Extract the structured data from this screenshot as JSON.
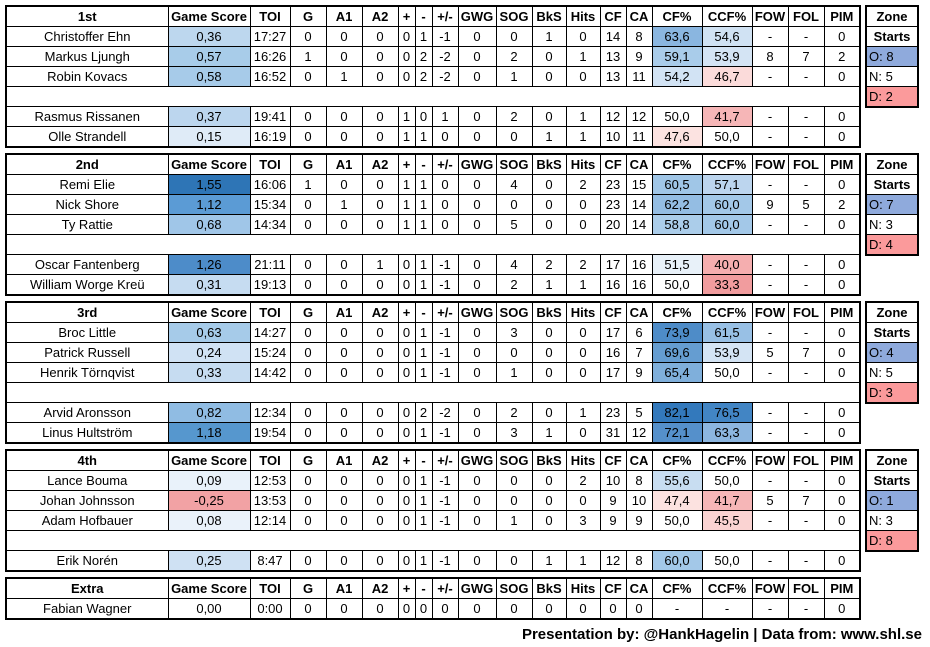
{
  "chart_data": {
    "type": "table",
    "title": "Line-by-line hockey player statistics",
    "columns": [
      "Game Score",
      "TOI",
      "G",
      "A1",
      "A2",
      "+",
      "-",
      "+/-",
      "GWG",
      "SOG",
      "BkS",
      "Hits",
      "CF",
      "CA",
      "CF%",
      "CCF%",
      "FOW",
      "FOL",
      "PIM"
    ],
    "zone_header": [
      "Zone",
      "Starts"
    ],
    "colors": {
      "zone_offensive_bg": "#8FAADC",
      "zone_defensive_bg": "#FB9A9B",
      "scale_blue_max": "#2E75B6",
      "scale_red_min": "#F2A2A4"
    },
    "sections": [
      {
        "label": "1st",
        "rows": [
          {
            "name": "Christoffer Ehn",
            "values": [
              "0,36",
              "17:27",
              "0",
              "0",
              "0",
              "0",
              "1",
              "-1",
              "0",
              "0",
              "1",
              "0",
              "14",
              "8",
              "63,6",
              "54,6",
              "-",
              "-",
              "0"
            ],
            "bg": {
              "0": "#BDD7EE",
              "14": "#8AB6E0",
              "15": "#D0E2F3"
            }
          },
          {
            "name": "Markus Ljungh",
            "values": [
              "0,57",
              "16:26",
              "1",
              "0",
              "0",
              "0",
              "2",
              "-2",
              "0",
              "2",
              "0",
              "1",
              "13",
              "9",
              "59,1",
              "53,9",
              "8",
              "7",
              "2"
            ],
            "bg": {
              "0": "#A8CCE9",
              "14": "#A9CCEA",
              "15": "#D4E4F4"
            }
          },
          {
            "name": "Robin Kovacs",
            "values": [
              "0,58",
              "16:52",
              "0",
              "1",
              "0",
              "0",
              "2",
              "-2",
              "0",
              "1",
              "0",
              "0",
              "13",
              "11",
              "54,2",
              "46,7",
              "-",
              "-",
              "0"
            ],
            "bg": {
              "0": "#A7CBE9",
              "14": "#D2E3F4",
              "15": "#FBDBDA"
            }
          },
          null,
          {
            "name": "Rasmus Rissanen",
            "values": [
              "0,37",
              "19:41",
              "0",
              "0",
              "0",
              "1",
              "0",
              "1",
              "0",
              "2",
              "0",
              "1",
              "12",
              "12",
              "50,0",
              "41,7",
              "-",
              "-",
              "0"
            ],
            "bg": {
              "0": "#BCD6EE",
              "15": "#F6B6B7"
            }
          },
          {
            "name": "Olle Strandell",
            "values": [
              "0,15",
              "16:19",
              "0",
              "0",
              "0",
              "1",
              "1",
              "0",
              "0",
              "0",
              "1",
              "1",
              "10",
              "11",
              "47,6",
              "50,0",
              "-",
              "-",
              "0"
            ],
            "bg": {
              "0": "#DFEBF7",
              "14": "#FCE3E1"
            }
          }
        ],
        "zone": {
          "o": "O: 8",
          "n": "N: 5",
          "d": "D: 2"
        }
      },
      {
        "label": "2nd",
        "rows": [
          {
            "name": "Remi Elie",
            "values": [
              "1,55",
              "16:06",
              "1",
              "0",
              "0",
              "1",
              "1",
              "0",
              "0",
              "4",
              "0",
              "2",
              "23",
              "15",
              "60,5",
              "57,1",
              "-",
              "-",
              "0"
            ],
            "bg": {
              "0": "#2E75B6",
              "14": "#A0C6E7",
              "15": "#BCD5EE"
            }
          },
          {
            "name": "Nick Shore",
            "values": [
              "1,12",
              "15:34",
              "0",
              "1",
              "0",
              "1",
              "1",
              "0",
              "0",
              "0",
              "0",
              "0",
              "23",
              "14",
              "62,2",
              "60,0",
              "9",
              "5",
              "2"
            ],
            "bg": {
              "0": "#5B9BD5",
              "14": "#94BDE3",
              "15": "#A3C8E8"
            }
          },
          {
            "name": "Ty Rattie",
            "values": [
              "0,68",
              "14:34",
              "0",
              "0",
              "0",
              "1",
              "1",
              "0",
              "0",
              "5",
              "0",
              "0",
              "20",
              "14",
              "58,8",
              "60,0",
              "-",
              "-",
              "0"
            ],
            "bg": {
              "0": "#A0C6E8",
              "14": "#ABCDEA",
              "15": "#A3C8E8"
            }
          },
          null,
          {
            "name": "Oscar Fantenberg",
            "values": [
              "1,26",
              "21:11",
              "0",
              "0",
              "1",
              "0",
              "1",
              "-1",
              "0",
              "4",
              "2",
              "2",
              "17",
              "16",
              "51,5",
              "40,0",
              "-",
              "-",
              "0"
            ],
            "bg": {
              "0": "#4D8CC9",
              "14": "#E8F1F9",
              "15": "#F5AEAF"
            }
          },
          {
            "name": "William Worge Kreü",
            "values": [
              "0,31",
              "19:13",
              "0",
              "0",
              "0",
              "0",
              "1",
              "-1",
              "0",
              "2",
              "1",
              "1",
              "16",
              "16",
              "50,0",
              "33,3",
              "-",
              "-",
              "0"
            ],
            "bg": {
              "0": "#C6DCF1",
              "15": "#F19C9E"
            }
          }
        ],
        "zone": {
          "o": "O: 7",
          "n": "N: 3",
          "d": "D: 4"
        }
      },
      {
        "label": "3rd",
        "rows": [
          {
            "name": "Broc Little",
            "values": [
              "0,63",
              "14:27",
              "0",
              "0",
              "0",
              "0",
              "1",
              "-1",
              "0",
              "3",
              "0",
              "0",
              "17",
              "6",
              "73,9",
              "61,5",
              "-",
              "-",
              "0"
            ],
            "bg": {
              "0": "#A6CBE9",
              "14": "#4E8CC8",
              "15": "#98C0E5"
            }
          },
          {
            "name": "Patrick Russell",
            "values": [
              "0,24",
              "15:24",
              "0",
              "0",
              "0",
              "0",
              "1",
              "-1",
              "0",
              "0",
              "0",
              "0",
              "16",
              "7",
              "69,6",
              "53,9",
              "5",
              "7",
              "0"
            ],
            "bg": {
              "0": "#D0E2F4",
              "14": "#659DD1",
              "15": "#D4E4F4"
            }
          },
          {
            "name": "Henrik Törnqvist",
            "values": [
              "0,33",
              "14:42",
              "0",
              "0",
              "0",
              "0",
              "1",
              "-1",
              "0",
              "1",
              "0",
              "0",
              "17",
              "9",
              "65,4",
              "50,0",
              "-",
              "-",
              "0"
            ],
            "bg": {
              "0": "#C6DCF1",
              "14": "#7FAFDB"
            }
          },
          null,
          {
            "name": "Arvid Aronsson",
            "values": [
              "0,82",
              "12:34",
              "0",
              "0",
              "0",
              "0",
              "2",
              "-2",
              "0",
              "2",
              "0",
              "1",
              "23",
              "5",
              "82,1",
              "76,5",
              "-",
              "-",
              "0"
            ],
            "bg": {
              "0": "#90BCE3",
              "14": "#3379BC",
              "15": "#4285C4"
            }
          },
          {
            "name": "Linus Hultström",
            "values": [
              "1,18",
              "19:54",
              "0",
              "0",
              "0",
              "0",
              "1",
              "-1",
              "0",
              "3",
              "1",
              "0",
              "31",
              "12",
              "72,1",
              "63,3",
              "-",
              "-",
              "0"
            ],
            "bg": {
              "0": "#5697CE",
              "14": "#5590CB",
              "15": "#8CB6E0"
            }
          }
        ],
        "zone": {
          "o": "O: 4",
          "n": "N: 5",
          "d": "D: 3"
        }
      },
      {
        "label": "4th",
        "rows": [
          {
            "name": "Lance Bouma",
            "values": [
              "0,09",
              "12:53",
              "0",
              "0",
              "0",
              "0",
              "1",
              "-1",
              "0",
              "0",
              "0",
              "2",
              "10",
              "8",
              "55,6",
              "50,0",
              "-",
              "-",
              "0"
            ],
            "bg": {
              "0": "#E9F2FA",
              "14": "#C8DDF1"
            }
          },
          {
            "name": "Johan Johnsson",
            "values": [
              "-0,25",
              "13:53",
              "0",
              "0",
              "0",
              "0",
              "1",
              "-1",
              "0",
              "0",
              "0",
              "0",
              "9",
              "10",
              "47,4",
              "41,7",
              "5",
              "7",
              "0"
            ],
            "bg": {
              "0": "#F2A2A4",
              "14": "#FCE2E0",
              "15": "#F6B6B7"
            }
          },
          {
            "name": "Adam Hofbauer",
            "values": [
              "0,08",
              "12:14",
              "0",
              "0",
              "0",
              "0",
              "1",
              "-1",
              "0",
              "1",
              "0",
              "3",
              "9",
              "9",
              "50,0",
              "45,5",
              "-",
              "-",
              "0"
            ],
            "bg": {
              "0": "#EAF2FA",
              "15": "#FAD3D2"
            }
          },
          null,
          {
            "name": "Erik Norén",
            "values": [
              "0,25",
              "8:47",
              "0",
              "0",
              "0",
              "0",
              "1",
              "-1",
              "0",
              "0",
              "1",
              "1",
              "12",
              "8",
              "60,0",
              "50,0",
              "-",
              "-",
              "0"
            ],
            "bg": {
              "0": "#CFE1F3",
              "14": "#A3C8E8"
            }
          }
        ],
        "zone": {
          "o": "O: 1",
          "n": "N: 3",
          "d": "D: 8"
        }
      },
      {
        "label": "Extra",
        "rows": [
          {
            "name": "Fabian Wagner",
            "values": [
              "0,00",
              "0:00",
              "0",
              "0",
              "0",
              "0",
              "0",
              "0",
              "0",
              "0",
              "0",
              "0",
              "0",
              "0",
              "-",
              "-",
              "-",
              "-",
              "0"
            ],
            "bg": {}
          }
        ],
        "zone": null
      }
    ]
  },
  "footer": {
    "credit": "Presentation by: @HankHagelin | Data from: www.shl.se"
  }
}
